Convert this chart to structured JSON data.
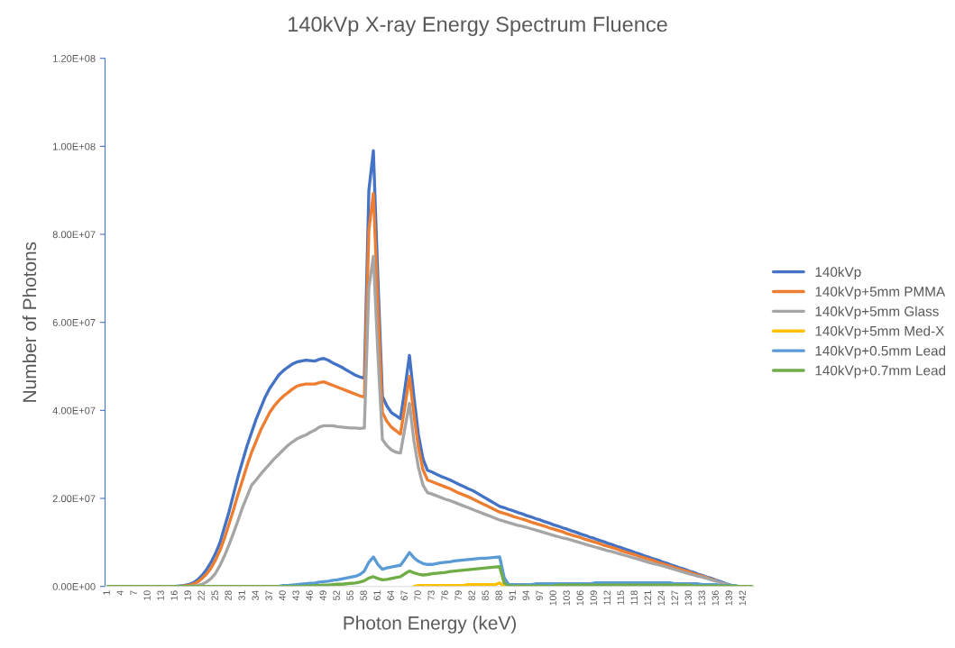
{
  "chart_data": {
    "type": "line",
    "title": "140kVp X-ray Energy Spectrum Fluence",
    "xlabel": "Photon Energy (keV)",
    "ylabel": "Number of Photons",
    "categories": [
      "1",
      null,
      null,
      "4",
      null,
      null,
      "7",
      null,
      null,
      "10",
      null,
      null,
      "13",
      null,
      null,
      "16",
      null,
      null,
      "19",
      null,
      null,
      "22",
      null,
      null,
      "25",
      null,
      null,
      "28",
      null,
      null,
      "31",
      null,
      null,
      "34",
      null,
      null,
      "37",
      null,
      null,
      "40",
      null,
      null,
      "43",
      null,
      null,
      "46",
      null,
      null,
      "49",
      null,
      null,
      "52",
      null,
      null,
      "55",
      null,
      null,
      "58",
      null,
      null,
      "61",
      null,
      null,
      "64",
      null,
      null,
      "67",
      null,
      null,
      "70",
      null,
      null,
      "73",
      null,
      null,
      "76",
      null,
      null,
      "79",
      null,
      null,
      "82",
      null,
      null,
      "85",
      null,
      null,
      "88",
      null,
      null,
      "91",
      null,
      null,
      "94",
      null,
      null,
      "97",
      null,
      null,
      "100",
      null,
      null,
      "103",
      null,
      null,
      "106",
      null,
      null,
      "109",
      null,
      null,
      "112",
      null,
      null,
      "115",
      null,
      null,
      "118",
      null,
      null,
      "121",
      null,
      null,
      "124",
      null,
      null,
      "127",
      null,
      null,
      "130",
      null,
      null,
      "133",
      null,
      null,
      "136",
      null,
      null,
      "139",
      null,
      null,
      "142",
      null,
      null
    ],
    "ylim": [
      0,
      120000000.0
    ],
    "yticks": [
      {
        "value": 0,
        "label": "0.00E+00"
      },
      {
        "value": 20000000.0,
        "label": "2.00E+07"
      },
      {
        "value": 40000000.0,
        "label": "4.00E+07"
      },
      {
        "value": 60000000.0,
        "label": "6.00E+07"
      },
      {
        "value": 80000000.0,
        "label": "8.00E+07"
      },
      {
        "value": 100000000.0,
        "label": "1.00E+08"
      },
      {
        "value": 120000000.0,
        "label": "1.20E+08"
      }
    ],
    "grid": false,
    "legend": "right",
    "marker": "none",
    "line_style": "solid",
    "series": [
      {
        "name": "140kVp",
        "color": "#4472c4",
        "values": [
          null,
          null,
          null,
          null,
          null,
          null,
          null,
          null,
          null,
          null,
          null,
          null,
          null,
          null,
          null,
          0,
          100000.0,
          200000.0,
          400000.0,
          800000.0,
          1500000.0,
          2500000.0,
          3800000.0,
          5500000.0,
          7500000.0,
          10000000.0,
          13500000.0,
          17000000.0,
          21000000.0,
          25000000.0,
          28500000.0,
          32000000.0,
          35000000.0,
          38000000.0,
          40500000.0,
          43000000.0,
          45000000.0,
          46500000.0,
          48000000.0,
          49000000.0,
          49800000.0,
          50500000.0,
          51000000.0,
          51200000.0,
          51400000.0,
          51300000.0,
          51200000.0,
          51600000.0,
          51800000.0,
          51400000.0,
          50800000.0,
          50300000.0,
          49800000.0,
          49200000.0,
          48600000.0,
          48000000.0,
          47600000.0,
          47300000.0,
          90000000.0,
          99000000.0,
          70000000.0,
          43200000.0,
          41000000.0,
          39500000.0,
          38800000.0,
          38100000.0,
          45000000.0,
          52500000.0,
          43000000.0,
          34400000.0,
          29000000.0,
          26400000.0,
          26000000.0,
          25500000.0,
          25000000.0,
          24600000.0,
          24200000.0,
          23700000.0,
          23200000.0,
          22700000.0,
          22200000.0,
          21800000.0,
          21200000.0,
          20600000.0,
          20000000.0,
          19400000.0,
          18800000.0,
          18200000.0,
          17900000.0,
          17500000.0,
          17200000.0,
          16800000.0,
          16500000.0,
          16100000.0,
          15800000.0,
          15400000.0,
          15100000.0,
          14700000.0,
          14400000.0,
          14000000.0,
          13700000.0,
          13300000.0,
          13000000.0,
          12600000.0,
          12300000.0,
          11900000.0,
          11600000.0,
          11200000.0,
          10900000.0,
          10500000.0,
          10200000.0,
          9800000.0,
          9500000.0,
          9100000.0,
          8800000.0,
          8400000.0,
          8100000.0,
          7700000.0,
          7400000.0,
          7000000.0,
          6700000.0,
          6300000.0,
          6000000.0,
          5600000.0,
          5300000.0,
          4900000.0,
          4600000.0,
          4200000.0,
          3900000.0,
          3500000.0,
          3200000.0,
          2800000.0,
          2500000.0,
          2100000.0,
          1800000.0,
          1400000.0,
          1100000.0,
          700000.0,
          400000.0,
          0,
          null,
          null,
          null,
          null
        ]
      },
      {
        "name": "140kVp+5mm PMMA",
        "color": "#ed7d31",
        "values": [
          null,
          null,
          null,
          null,
          null,
          null,
          null,
          null,
          null,
          null,
          null,
          null,
          null,
          null,
          null,
          null,
          0,
          100000.0,
          200000.0,
          500000.0,
          1000000.0,
          1800000.0,
          2800000.0,
          4200000.0,
          6000000.0,
          8200000.0,
          11000000.0,
          14200000.0,
          17500000.0,
          21000000.0,
          24200000.0,
          27500000.0,
          30500000.0,
          33000000.0,
          35500000.0,
          37500000.0,
          39500000.0,
          41000000.0,
          42200000.0,
          43200000.0,
          44000000.0,
          44800000.0,
          45500000.0,
          45800000.0,
          46000000.0,
          46000000.0,
          46000000.0,
          46300000.0,
          46500000.0,
          46100000.0,
          45700000.0,
          45300000.0,
          44900000.0,
          44500000.0,
          44100000.0,
          43700000.0,
          43300000.0,
          43000000.0,
          81000000.0,
          89300000.0,
          64000000.0,
          39500000.0,
          37500000.0,
          36200000.0,
          35400000.0,
          34600000.0,
          41000000.0,
          47700000.0,
          39000000.0,
          31500000.0,
          26500000.0,
          24200000.0,
          23800000.0,
          23400000.0,
          23000000.0,
          22600000.0,
          22200000.0,
          21700000.0,
          21200000.0,
          20800000.0,
          20400000.0,
          19900000.0,
          19400000.0,
          18900000.0,
          18400000.0,
          17900000.0,
          17400000.0,
          16900000.0,
          16600000.0,
          16300000.0,
          15900000.0,
          15600000.0,
          15300000.0,
          15000000.0,
          14600000.0,
          14300000.0,
          14000000.0,
          13700000.0,
          13300000.0,
          13000000.0,
          12700000.0,
          12400000.0,
          12000000.0,
          11700000.0,
          11400000.0,
          11100000.0,
          10700000.0,
          10400000.0,
          10100000.0,
          9800000.0,
          9400000.0,
          9100000.0,
          8800000.0,
          8500000.0,
          8100000.0,
          7800000.0,
          7500000.0,
          7200000.0,
          6800000.0,
          6500000.0,
          6200000.0,
          5900000.0,
          5500000.0,
          5200000.0,
          4900000.0,
          4600000.0,
          4200000.0,
          3900000.0,
          3600000.0,
          3300000.0,
          2900000.0,
          2600000.0,
          2300000.0,
          2000000.0,
          1600000.0,
          1300000.0,
          null,
          null,
          null,
          null,
          null,
          null,
          null,
          null
        ]
      },
      {
        "name": "140kVp+5mm Glass",
        "color": "#a5a5a5",
        "values": [
          null,
          null,
          null,
          null,
          null,
          null,
          null,
          null,
          null,
          null,
          null,
          null,
          null,
          null,
          null,
          null,
          null,
          null,
          0,
          100000.0,
          200000.0,
          500000.0,
          1000000.0,
          1800000.0,
          3000000.0,
          4800000.0,
          7000000.0,
          9500000.0,
          12200000.0,
          15000000.0,
          18000000.0,
          20500000.0,
          23000000.0,
          24200000.0,
          25500000.0,
          26700000.0,
          27800000.0,
          29000000.0,
          30000000.0,
          31000000.0,
          32000000.0,
          32800000.0,
          33500000.0,
          34000000.0,
          34400000.0,
          35000000.0,
          35500000.0,
          36200000.0,
          36500000.0,
          36500000.0,
          36500000.0,
          36300000.0,
          36200000.0,
          36100000.0,
          36000000.0,
          36000000.0,
          35900000.0,
          36000000.0,
          68000000.0,
          75000000.0,
          53000000.0,
          33400000.0,
          32000000.0,
          31000000.0,
          30500000.0,
          30300000.0,
          36000000.0,
          41600000.0,
          33000000.0,
          27000000.0,
          23000000.0,
          21300000.0,
          21000000.0,
          20600000.0,
          20200000.0,
          19800000.0,
          19500000.0,
          19100000.0,
          18700000.0,
          18300000.0,
          17900000.0,
          17500000.0,
          17100000.0,
          16700000.0,
          16300000.0,
          15900000.0,
          15500000.0,
          15100000.0,
          14800000.0,
          14500000.0,
          14200000.0,
          13900000.0,
          13700000.0,
          13400000.0,
          13100000.0,
          12800000.0,
          12500000.0,
          12200000.0,
          11900000.0,
          11600000.0,
          11300000.0,
          11000000.0,
          10800000.0,
          10500000.0,
          10200000.0,
          9900000.0,
          9600000.0,
          9300000.0,
          9000000.0,
          8700000.0,
          8400000.0,
          8100000.0,
          7900000.0,
          7600000.0,
          7300000.0,
          7000000.0,
          6700000.0,
          6400000.0,
          6100000.0,
          5800000.0,
          5500000.0,
          5200000.0,
          5000000.0,
          4700000.0,
          4400000.0,
          4100000.0,
          3800000.0,
          3500000.0,
          3200000.0,
          2900000.0,
          2600000.0,
          2300000.0,
          2100000.0,
          1800000.0,
          1500000.0,
          1200000.0,
          900000.0,
          600000.0,
          300000.0,
          0,
          null,
          null,
          null,
          null
        ]
      },
      {
        "name": "140kVp+5mm Med-X",
        "color": "#ffc000",
        "values": [
          null,
          null,
          null,
          null,
          null,
          null,
          null,
          null,
          null,
          null,
          null,
          null,
          null,
          null,
          null,
          null,
          null,
          null,
          null,
          null,
          null,
          null,
          null,
          null,
          null,
          null,
          null,
          null,
          null,
          null,
          null,
          null,
          null,
          null,
          null,
          null,
          null,
          null,
          null,
          null,
          null,
          null,
          null,
          null,
          null,
          null,
          null,
          null,
          null,
          null,
          null,
          null,
          null,
          null,
          null,
          null,
          null,
          null,
          null,
          null,
          null,
          null,
          null,
          null,
          null,
          null,
          null,
          null,
          0,
          200000.0,
          200000.0,
          200000.0,
          200000.0,
          200000.0,
          200000.0,
          200000.0,
          200000.0,
          200000.0,
          200000.0,
          200000.0,
          400000.0,
          400000.0,
          400000.0,
          400000.0,
          400000.0,
          400000.0,
          400000.0,
          800000.0,
          0,
          null,
          null,
          null,
          null,
          null,
          null,
          null,
          null,
          null,
          null,
          null,
          null,
          null,
          null,
          null,
          null,
          null,
          null,
          null,
          null,
          null,
          null,
          null,
          null,
          null,
          null,
          null,
          null,
          null,
          null,
          null,
          null,
          null,
          null,
          null,
          null,
          null,
          null,
          null,
          null,
          null,
          null,
          null,
          null,
          null,
          null,
          null,
          null,
          null,
          null,
          null,
          null,
          null,
          null,
          null
        ]
      },
      {
        "name": "140kVp+0.5mm Lead",
        "color": "#5b9bd5",
        "values": [
          null,
          null,
          null,
          null,
          null,
          null,
          null,
          null,
          null,
          null,
          null,
          null,
          null,
          null,
          null,
          null,
          null,
          null,
          null,
          null,
          null,
          null,
          null,
          null,
          null,
          null,
          null,
          null,
          null,
          null,
          null,
          null,
          null,
          null,
          null,
          null,
          null,
          null,
          0,
          200000.0,
          200000.0,
          300000.0,
          400000.0,
          500000.0,
          600000.0,
          700000.0,
          800000.0,
          1000000.0,
          1100000.0,
          1200000.0,
          1400000.0,
          1500000.0,
          1700000.0,
          1900000.0,
          2100000.0,
          2300000.0,
          2700000.0,
          3500000.0,
          5500000.0,
          6700000.0,
          5000000.0,
          3900000.0,
          4200000.0,
          4400000.0,
          4600000.0,
          4800000.0,
          6200000.0,
          7700000.0,
          6500000.0,
          5700000.0,
          5200000.0,
          5000000.0,
          5000000.0,
          5200000.0,
          5400000.0,
          5500000.0,
          5600000.0,
          5800000.0,
          5900000.0,
          6000000.0,
          6100000.0,
          6200000.0,
          6300000.0,
          6400000.0,
          6400000.0,
          6500000.0,
          6600000.0,
          6700000.0,
          2000000.0,
          400000.0,
          400000.0,
          400000.0,
          400000.0,
          400000.0,
          400000.0,
          600000.0,
          600000.0,
          600000.0,
          600000.0,
          600000.0,
          600000.0,
          600000.0,
          600000.0,
          600000.0,
          600000.0,
          600000.0,
          600000.0,
          600000.0,
          800000.0,
          800000.0,
          800000.0,
          800000.0,
          800000.0,
          800000.0,
          800000.0,
          800000.0,
          800000.0,
          800000.0,
          800000.0,
          800000.0,
          800000.0,
          800000.0,
          800000.0,
          800000.0,
          800000.0,
          800000.0,
          600000.0,
          600000.0,
          600000.0,
          600000.0,
          600000.0,
          600000.0,
          400000.0,
          400000.0,
          400000.0,
          400000.0,
          200000.0,
          200000.0,
          200000.0,
          200000.0,
          0,
          null,
          null,
          null
        ]
      },
      {
        "name": "140kVp+0.7mm Lead",
        "color": "#70ad47",
        "values": [
          0,
          0,
          0,
          0,
          0,
          0,
          0,
          0,
          0,
          0,
          0,
          0,
          0,
          0,
          0,
          0,
          0,
          0,
          0,
          0,
          0,
          0,
          0,
          0,
          0,
          0,
          0,
          0,
          0,
          0,
          0,
          0,
          0,
          0,
          0,
          0,
          0,
          0,
          0,
          0,
          0,
          0,
          0,
          0,
          100000.0,
          100000.0,
          200000.0,
          200000.0,
          300000.0,
          300000.0,
          400000.0,
          500000.0,
          500000.0,
          600000.0,
          700000.0,
          800000.0,
          1000000.0,
          1300000.0,
          1900000.0,
          2200000.0,
          1800000.0,
          1500000.0,
          1600000.0,
          1800000.0,
          2000000.0,
          2200000.0,
          2900000.0,
          3500000.0,
          3100000.0,
          2800000.0,
          2600000.0,
          2700000.0,
          2900000.0,
          3000000.0,
          3100000.0,
          3200000.0,
          3400000.0,
          3500000.0,
          3600000.0,
          3700000.0,
          3800000.0,
          3900000.0,
          4000000.0,
          4100000.0,
          4200000.0,
          4300000.0,
          4400000.0,
          4500000.0,
          800000.0,
          100000.0,
          100000.0,
          100000.0,
          100000.0,
          100000.0,
          100000.0,
          100000.0,
          100000.0,
          100000.0,
          100000.0,
          100000.0,
          300000.0,
          300000.0,
          300000.0,
          300000.0,
          300000.0,
          300000.0,
          300000.0,
          300000.0,
          300000.0,
          300000.0,
          300000.0,
          300000.0,
          300000.0,
          300000.0,
          300000.0,
          300000.0,
          300000.0,
          300000.0,
          300000.0,
          300000.0,
          300000.0,
          300000.0,
          300000.0,
          300000.0,
          300000.0,
          300000.0,
          300000.0,
          300000.0,
          300000.0,
          300000.0,
          100000.0,
          100000.0,
          100000.0,
          100000.0,
          100000.0,
          100000.0,
          100000.0,
          100000.0,
          100000.0,
          100000.0,
          0,
          0,
          0,
          0
        ]
      }
    ]
  }
}
